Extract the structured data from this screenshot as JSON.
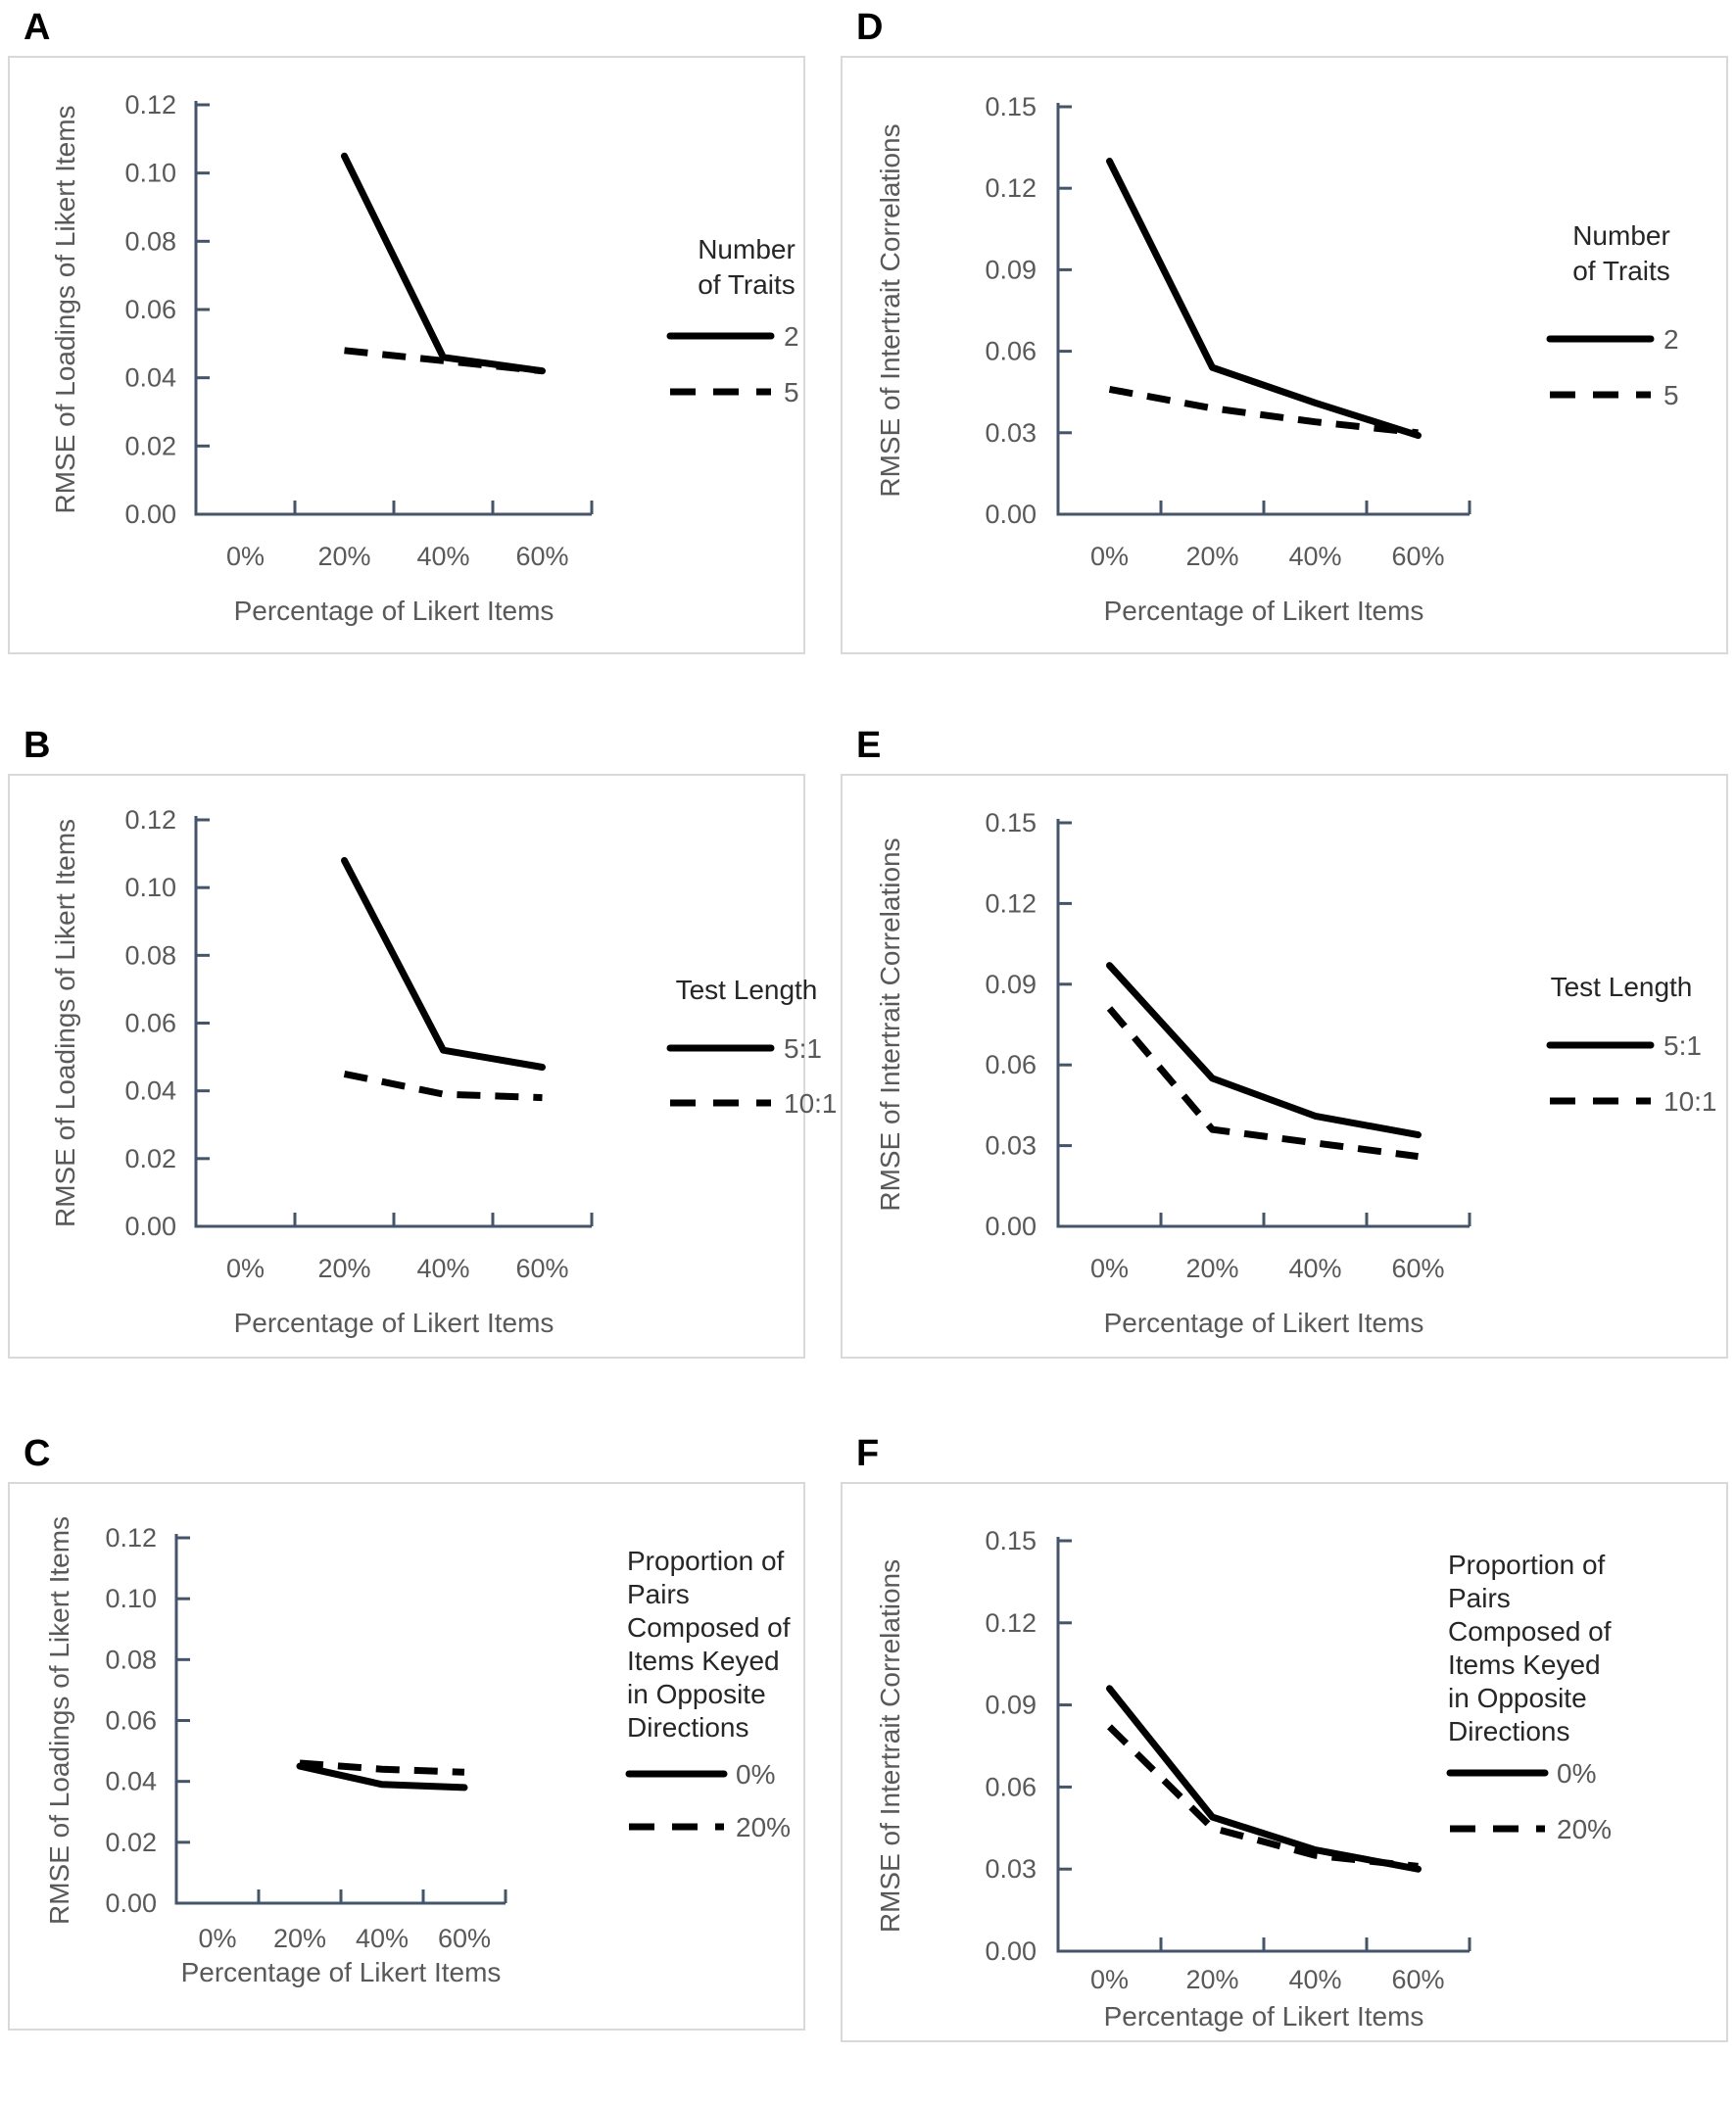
{
  "figure_title": "",
  "colors": {
    "background": "#FFFFFF",
    "panel_border": "#D9D9D9",
    "axis": "#44546A",
    "tick_label": "#595959",
    "axis_title": "#595959",
    "series_line": "#000000",
    "legend_title": "#262626",
    "legend_label": "#595959",
    "panel_label": "#000000"
  },
  "chart_data": [
    {
      "panel": "A",
      "type": "line",
      "categories": [
        "0%",
        "20%",
        "40%",
        "60%"
      ],
      "xlabel": "Percentage of Likert Items",
      "ylabel": "RMSE of Loadings of Likert Items",
      "ylim": [
        0,
        0.12
      ],
      "y_ticks": [
        "0.00",
        "0.02",
        "0.04",
        "0.06",
        "0.08",
        "0.10",
        "0.12"
      ],
      "grid": false,
      "legend_position": "right",
      "legend_title": "Number of Traits",
      "legend_title_lines": [
        "Number",
        "of Traits"
      ],
      "series": [
        {
          "name": "2",
          "line_style": "solid",
          "values": [
            null,
            0.105,
            0.046,
            0.042
          ]
        },
        {
          "name": "5",
          "line_style": "dashed",
          "values": [
            null,
            0.048,
            0.045,
            0.042
          ]
        }
      ]
    },
    {
      "panel": "B",
      "type": "line",
      "categories": [
        "0%",
        "20%",
        "40%",
        "60%"
      ],
      "xlabel": "Percentage of Likert Items",
      "ylabel": "RMSE of Loadings of Likert Items",
      "ylim": [
        0,
        0.12
      ],
      "y_ticks": [
        "0.00",
        "0.02",
        "0.04",
        "0.06",
        "0.08",
        "0.10",
        "0.12"
      ],
      "grid": false,
      "legend_position": "right",
      "legend_title": "Test Length",
      "legend_title_lines": [
        "Test Length"
      ],
      "series": [
        {
          "name": "5:1",
          "line_style": "solid",
          "values": [
            null,
            0.108,
            0.052,
            0.047
          ]
        },
        {
          "name": "10:1",
          "line_style": "dashed",
          "values": [
            null,
            0.045,
            0.039,
            0.038
          ]
        }
      ]
    },
    {
      "panel": "C",
      "type": "line",
      "categories": [
        "0%",
        "20%",
        "40%",
        "60%"
      ],
      "xlabel": "Percentage of Likert Items",
      "ylabel": "RMSE of Loadings of Likert Items",
      "ylim": [
        0,
        0.12
      ],
      "y_ticks": [
        "0.00",
        "0.02",
        "0.04",
        "0.06",
        "0.08",
        "0.10",
        "0.12"
      ],
      "grid": false,
      "legend_position": "right",
      "legend_title": "Proportion of Pairs Composed of Items Keyed in Opposite Directions",
      "legend_title_lines": [
        "Proportion of",
        "Pairs",
        "Composed of",
        "Items Keyed",
        "in Opposite",
        "Directions"
      ],
      "series": [
        {
          "name": "0%",
          "line_style": "solid",
          "values": [
            null,
            0.045,
            0.039,
            0.038
          ]
        },
        {
          "name": "20%",
          "line_style": "dashed",
          "values": [
            null,
            0.046,
            0.044,
            0.043
          ]
        }
      ]
    },
    {
      "panel": "D",
      "type": "line",
      "categories": [
        "0%",
        "20%",
        "40%",
        "60%"
      ],
      "xlabel": "Percentage of Likert Items",
      "ylabel": "RMSE of Intertrait Correlations",
      "ylim": [
        0,
        0.15
      ],
      "y_ticks": [
        "0.00",
        "0.03",
        "0.06",
        "0.09",
        "0.12",
        "0.15"
      ],
      "grid": false,
      "legend_position": "right",
      "legend_title": "Number of Traits",
      "legend_title_lines": [
        "Number",
        "of Traits"
      ],
      "series": [
        {
          "name": "2",
          "line_style": "solid",
          "values": [
            0.13,
            0.054,
            0.041,
            0.029
          ]
        },
        {
          "name": "5",
          "line_style": "dashed",
          "values": [
            0.046,
            0.039,
            0.034,
            0.03
          ]
        }
      ]
    },
    {
      "panel": "E",
      "type": "line",
      "categories": [
        "0%",
        "20%",
        "40%",
        "60%"
      ],
      "xlabel": "Percentage of Likert Items",
      "ylabel": "RMSE of Intertrait Correlations",
      "ylim": [
        0,
        0.15
      ],
      "y_ticks": [
        "0.00",
        "0.03",
        "0.06",
        "0.09",
        "0.12",
        "0.15"
      ],
      "grid": false,
      "legend_position": "right",
      "legend_title": "Test Length",
      "legend_title_lines": [
        "Test Length"
      ],
      "series": [
        {
          "name": "5:1",
          "line_style": "solid",
          "values": [
            0.097,
            0.055,
            0.041,
            0.034
          ]
        },
        {
          "name": "10:1",
          "line_style": "dashed",
          "values": [
            0.081,
            0.036,
            0.031,
            0.026
          ]
        }
      ]
    },
    {
      "panel": "F",
      "type": "line",
      "categories": [
        "0%",
        "20%",
        "40%",
        "60%"
      ],
      "xlabel": "Percentage of Likert Items",
      "ylabel": "RMSE of Intertrait Correlations",
      "ylim": [
        0,
        0.15
      ],
      "y_ticks": [
        "0.00",
        "0.03",
        "0.06",
        "0.09",
        "0.12",
        "0.15"
      ],
      "grid": false,
      "legend_position": "right",
      "legend_title": "Proportion of Pairs Composed of Items Keyed in Opposite Directions",
      "legend_title_lines": [
        "Proportion of",
        "Pairs",
        "Composed of",
        "Items Keyed",
        "in Opposite",
        "Directions"
      ],
      "series": [
        {
          "name": "0%",
          "line_style": "solid",
          "values": [
            0.096,
            0.049,
            0.037,
            0.03
          ]
        },
        {
          "name": "20%",
          "line_style": "dashed",
          "values": [
            0.082,
            0.045,
            0.035,
            0.031
          ]
        }
      ]
    }
  ]
}
